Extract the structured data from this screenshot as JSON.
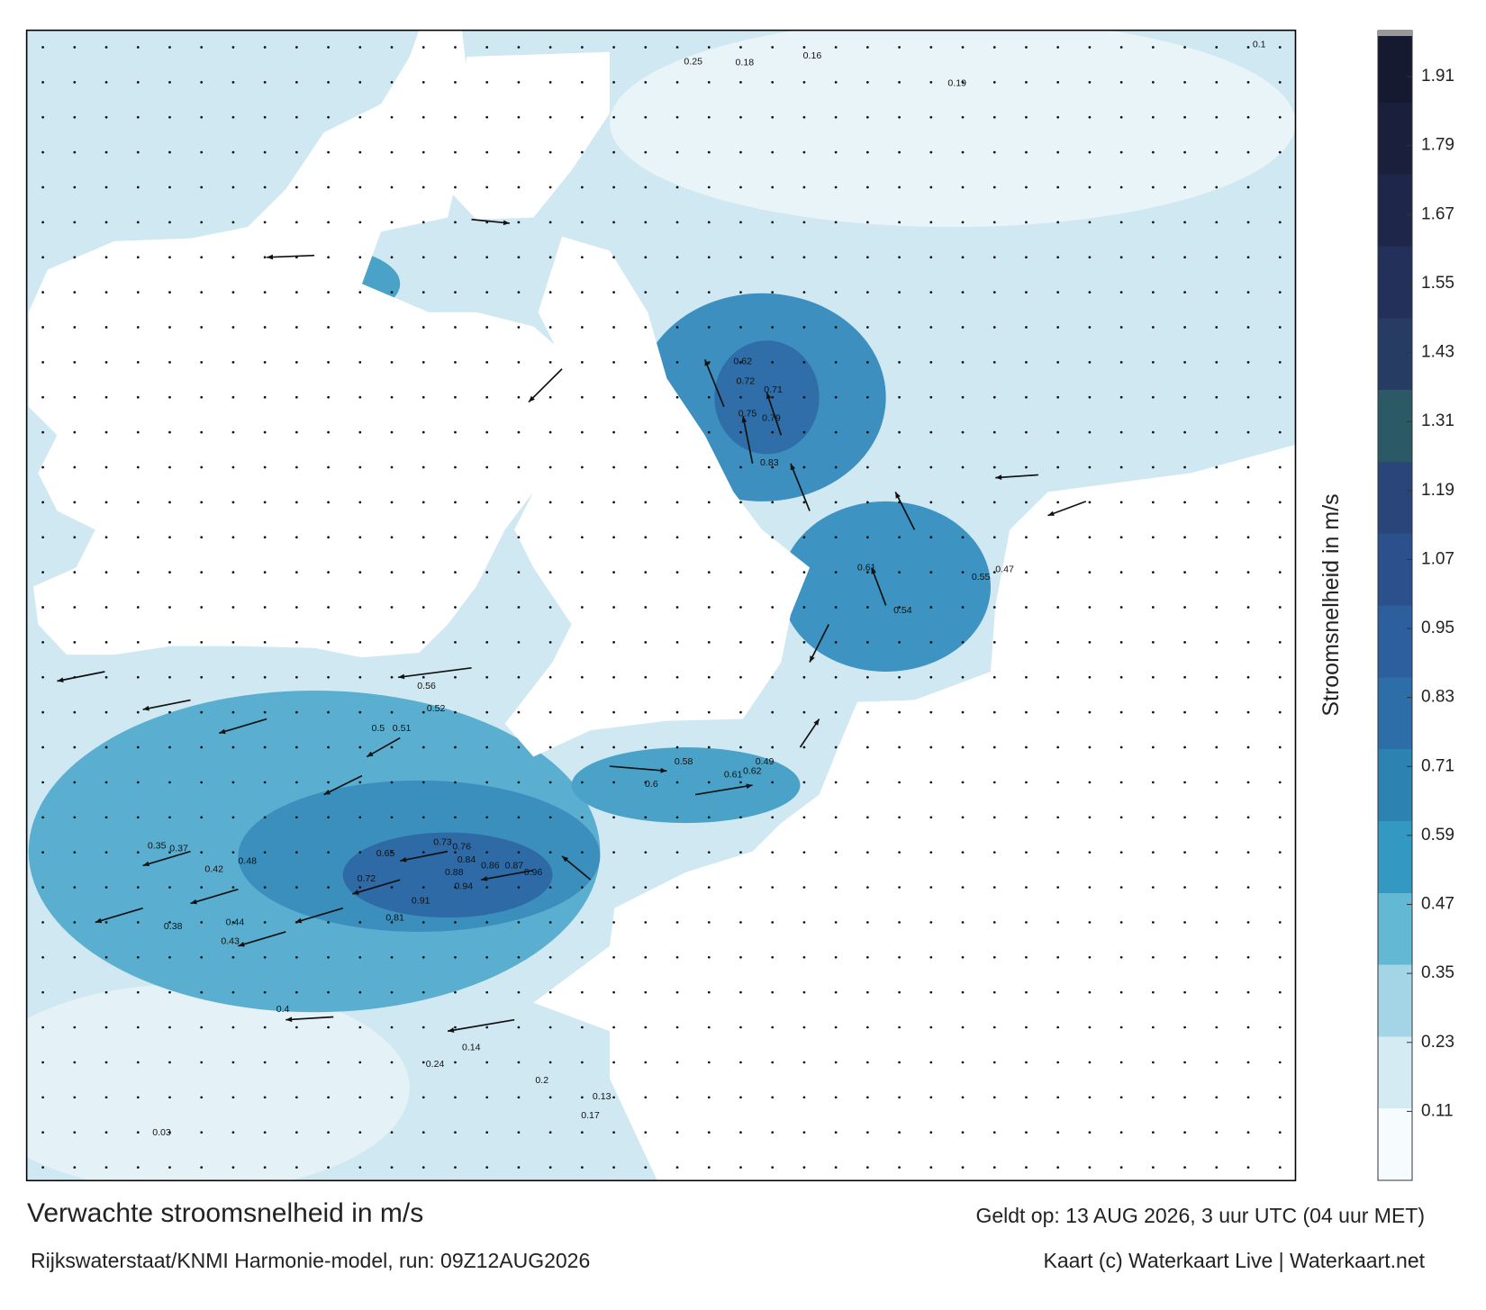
{
  "title": "Verwachte stroomsnelheid in m/s",
  "valid_time": "Geldt op: 13 AUG 2026, 3 uur UTC (04 uur MET)",
  "source": "Rijkswaterstaat/KNMI Harmonie-model, run: 09Z12AUG2026",
  "credit": "Kaart (c) Waterkaart Live | Waterkaart.net",
  "colorbar": {
    "label": "Stroomsnelheid in m/s",
    "lim": [
      -0.01,
      1.99
    ],
    "ticks": [
      0.11,
      0.23,
      0.35,
      0.47,
      0.59,
      0.71,
      0.83,
      0.95,
      1.07,
      1.19,
      1.31,
      1.43,
      1.55,
      1.67,
      1.79,
      1.91
    ],
    "colors": [
      "#f6fbfd",
      "#d4ebf3",
      "#a4d5e6",
      "#63b8d3",
      "#3399c2",
      "#2c82b1",
      "#2e6ea8",
      "#2d5e9d",
      "#2b508c",
      "#2a4579",
      "#2b5a66",
      "#263c62",
      "#22305a",
      "#1e2649",
      "#1a1f3c",
      "#161a30"
    ]
  },
  "point_values": [
    0.86,
    0.87,
    0.96,
    0.73,
    0.76,
    0.84,
    0.88,
    0.94,
    0.91,
    0.81,
    0.65,
    0.72,
    0.42,
    0.48,
    0.35,
    0.37,
    0.44,
    0.43,
    0.38,
    0.4,
    0.5,
    0.51,
    0.56,
    0.52,
    0.79,
    0.75,
    0.71,
    0.72,
    0.62,
    0.83,
    0.61,
    0.54,
    0.55,
    0.47,
    0.61,
    0.62,
    0.49,
    0.58,
    0.6,
    0.25,
    0.18,
    0.16,
    0.19,
    0.1,
    0.03,
    0.14,
    0.24,
    0.2,
    0.13,
    0.17
  ]
}
